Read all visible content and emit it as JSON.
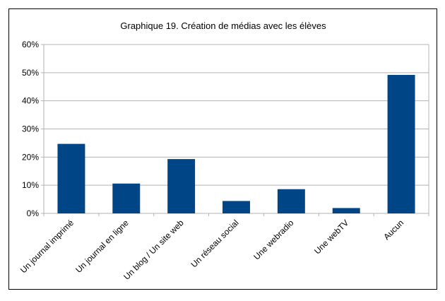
{
  "chart_data": {
    "type": "bar",
    "title": "Graphique 19. Création de médias avec les élèves",
    "categories": [
      "Un journal imprimé",
      "Un journal en ligne",
      "Un blog / Un site web",
      "Un réseau social",
      "Une webradio",
      "Une webTV",
      "Aucun"
    ],
    "values": [
      24.7,
      10.6,
      19.3,
      4.4,
      8.6,
      1.9,
      49.2
    ],
    "ylim": [
      0,
      60
    ],
    "yticks": [
      "0%",
      "10%",
      "20%",
      "30%",
      "40%",
      "50%",
      "60%"
    ],
    "grid": true,
    "bar_color": "#004586",
    "xlabel": "",
    "ylabel": ""
  }
}
